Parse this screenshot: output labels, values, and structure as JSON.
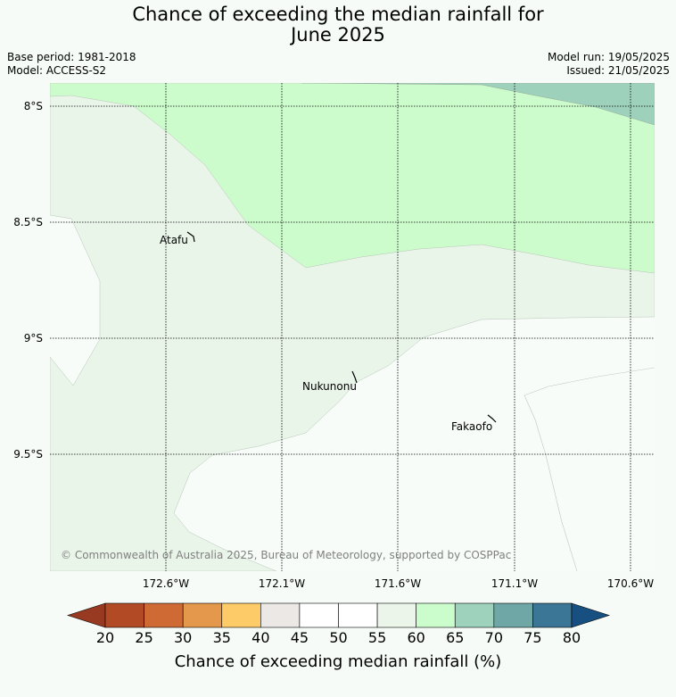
{
  "title_line1": "Chance of exceeding the median rainfall for",
  "title_line2": "June 2025",
  "base_period": "Base period: 1981-2018",
  "model": "Model: ACCESS-S2",
  "model_run": "Model run: 19/05/2025",
  "issued": "Issued: 21/05/2025",
  "copyright": "© Commonwealth of Australia 2025, Bureau of Meteorology, supported by COSPPac",
  "map": {
    "lat_labels": [
      "8°S",
      "8.5°S",
      "9°S",
      "9.5°S"
    ],
    "lon_labels": [
      "172.6°W",
      "172.1°W",
      "171.6°W",
      "171.1°W",
      "170.6°W"
    ],
    "places": [
      {
        "name": "Atafu"
      },
      {
        "name": "Nukunonu"
      },
      {
        "name": "Fakaofo"
      }
    ],
    "region_colors": {
      "c45_50": "#f7fcf9",
      "c55_60": "#eaf5ea",
      "c60_65": "#ccfccc",
      "c65_70": "#9ed1bb"
    }
  },
  "colorbar": {
    "ticks": [
      "20",
      "25",
      "30",
      "35",
      "40",
      "45",
      "50",
      "55",
      "60",
      "65",
      "70",
      "75",
      "80"
    ],
    "under_color": "#983a22",
    "over_color": "#174f80",
    "colors": [
      "#b24a25",
      "#cf6a35",
      "#e4984b",
      "#fdcb67",
      "#ebe8e5",
      "#ffffff",
      "#ffffff",
      "#ebf5ea",
      "#cbfccc",
      "#9ed2bc",
      "#6ea7a5",
      "#3c7696"
    ],
    "label": "Chance of exceeding median rainfall (%)"
  }
}
